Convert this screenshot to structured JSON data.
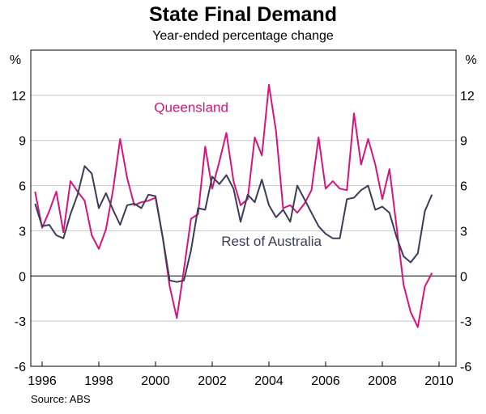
{
  "chart_data": {
    "type": "line",
    "title": "State Final Demand",
    "subtitle": "Year-ended percentage change",
    "unit_left": "%",
    "unit_right": "%",
    "source": "Source: ABS",
    "ylim": [
      -6,
      15
    ],
    "yticks": [
      -6,
      -3,
      0,
      3,
      6,
      9,
      12
    ],
    "xlim": [
      1995.6,
      2010.6
    ],
    "xticks": [
      1996,
      1998,
      2000,
      2002,
      2004,
      2006,
      2008,
      2010
    ],
    "xtick_labels": [
      "1996",
      "1998",
      "2000",
      "2002",
      "2004",
      "2006",
      "2008",
      "2010"
    ],
    "x": [
      1995.75,
      1996.0,
      1996.25,
      1996.5,
      1996.75,
      1997.0,
      1997.25,
      1997.5,
      1997.75,
      1998.0,
      1998.25,
      1998.5,
      1998.75,
      1999.0,
      1999.25,
      1999.5,
      1999.75,
      2000.0,
      2000.25,
      2000.5,
      2000.75,
      2001.0,
      2001.25,
      2001.5,
      2001.75,
      2002.0,
      2002.25,
      2002.5,
      2002.75,
      2003.0,
      2003.25,
      2003.5,
      2003.75,
      2004.0,
      2004.25,
      2004.5,
      2004.75,
      2005.0,
      2005.25,
      2005.5,
      2005.75,
      2006.0,
      2006.25,
      2006.5,
      2006.75,
      2007.0,
      2007.25,
      2007.5,
      2007.75,
      2008.0,
      2008.25,
      2008.5,
      2008.75,
      2009.0,
      2009.25,
      2009.5,
      2009.75
    ],
    "series": [
      {
        "name": "Queensland",
        "color": "#d6157c",
        "values": [
          5.6,
          3.2,
          4.3,
          5.6,
          2.9,
          6.3,
          5.6,
          5.0,
          2.7,
          1.8,
          3.1,
          5.7,
          9.1,
          6.5,
          4.7,
          4.9,
          5.0,
          5.2,
          2.6,
          -0.7,
          -2.8,
          0.4,
          3.8,
          4.1,
          8.6,
          5.8,
          7.6,
          9.5,
          6.3,
          4.7,
          5.1,
          9.2,
          8.0,
          12.7,
          9.6,
          4.5,
          4.7,
          4.2,
          4.8,
          5.7,
          9.2,
          5.8,
          6.3,
          5.8,
          5.7,
          10.8,
          7.4,
          9.1,
          7.4,
          5.1,
          7.1,
          3.3,
          -0.6,
          -2.4,
          -3.4,
          -0.7,
          0.2
        ]
      },
      {
        "name": "Rest of Australia",
        "color": "#3a3d5a",
        "values": [
          4.8,
          3.3,
          3.4,
          2.7,
          2.5,
          4.1,
          5.4,
          7.3,
          6.8,
          4.5,
          5.5,
          4.4,
          3.4,
          4.7,
          4.8,
          4.5,
          5.4,
          5.3,
          2.6,
          -0.3,
          -0.4,
          -0.3,
          1.7,
          4.5,
          4.4,
          6.6,
          6.1,
          6.7,
          5.8,
          3.6,
          5.4,
          4.9,
          6.4,
          4.7,
          3.9,
          4.4,
          3.6,
          6.0,
          5.1,
          4.2,
          3.3,
          2.8,
          2.5,
          2.5,
          5.1,
          5.2,
          5.7,
          6.0,
          4.4,
          4.6,
          4.2,
          2.6,
          1.3,
          0.9,
          1.5,
          4.3,
          5.4
        ]
      }
    ],
    "annotations": [
      {
        "text": "Queensland",
        "series": "Queensland"
      },
      {
        "text": "Rest of Australia",
        "series": "Rest of Australia"
      }
    ]
  }
}
